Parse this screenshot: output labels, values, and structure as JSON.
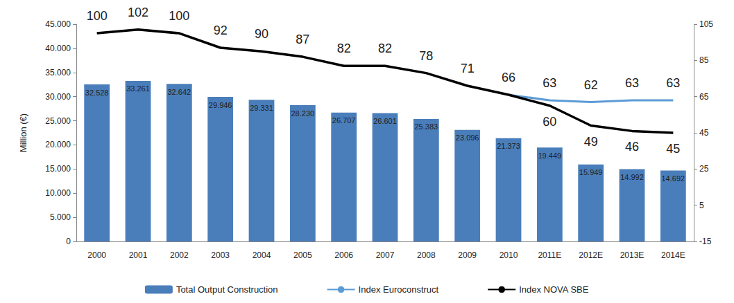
{
  "chart_data": {
    "type": "bar",
    "y_label": "Million (€)",
    "categories": [
      "2000",
      "2001",
      "2002",
      "2003",
      "2004",
      "2005",
      "2006",
      "2007",
      "2008",
      "2009",
      "2010",
      "2011E",
      "2012E",
      "2013E",
      "2014E"
    ],
    "series": [
      {
        "name": "Total Output Construction",
        "type": "bar",
        "color": "#4a7ebb",
        "values": [
          32528,
          33261,
          32642,
          29946,
          29331,
          28230,
          26707,
          26601,
          25383,
          23096,
          21373,
          19449,
          15949,
          14992,
          14692
        ],
        "value_labels": [
          "32.528",
          "33.261",
          "32.642",
          "29.946",
          "29.331",
          "28.230",
          "26.707",
          "26.601",
          "25.383",
          "23.096",
          "21.373",
          "19.449",
          "15.949",
          "14.992",
          "14.692"
        ]
      },
      {
        "name": "Index Euroconstruct",
        "type": "line",
        "axis": "y2",
        "color": "#5b9bd5",
        "values": [
          null,
          null,
          null,
          null,
          null,
          null,
          null,
          null,
          null,
          null,
          66,
          63,
          62,
          63,
          63
        ]
      },
      {
        "name": "Index NOVA SBE",
        "type": "line",
        "axis": "y2",
        "color": "#000000",
        "values": [
          100,
          102,
          100,
          92,
          90,
          87,
          82,
          82,
          78,
          71,
          66,
          60,
          49,
          46,
          45
        ]
      }
    ],
    "ylim": [
      0,
      45000
    ],
    "yticks": [
      0,
      {
        "value": 5000,
        "label": "5.000"
      },
      {
        "value": 10000,
        "label": "10.000"
      },
      {
        "value": 15000,
        "label": "15.000"
      },
      {
        "value": 20000,
        "label": "20.000"
      },
      {
        "value": 25000,
        "label": "25.000"
      },
      {
        "value": 30000,
        "label": "30.000"
      },
      {
        "value": 35000,
        "label": "35.000"
      },
      {
        "value": 40000,
        "label": "40.000"
      },
      {
        "value": 45000,
        "label": "45.000"
      }
    ],
    "y2lim": [
      -15,
      105
    ],
    "y2ticks": [
      -15,
      5,
      25,
      45,
      65,
      85,
      105
    ],
    "grid": false,
    "legend": "bottom",
    "data_labels": true
  }
}
